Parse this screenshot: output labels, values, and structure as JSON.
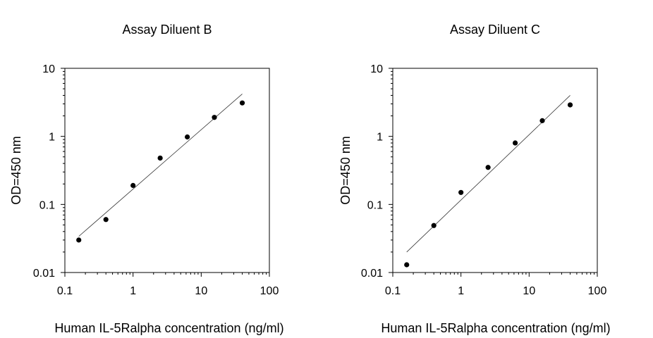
{
  "chart_data": [
    {
      "type": "scatter",
      "title": "Assay Diluent B",
      "xlabel": "Human IL-5Ralpha concentration (ng/ml)",
      "ylabel": "OD=450 nm",
      "xscale": "log",
      "yscale": "log",
      "xlim": [
        0.1,
        100
      ],
      "ylim": [
        0.01,
        10
      ],
      "xticks": [
        "0.1",
        "1",
        "10",
        "100"
      ],
      "yticks": [
        "0.01",
        "0.1",
        "1",
        "10"
      ],
      "grid": false,
      "x": [
        0.16,
        0.4,
        1,
        2.5,
        6.25,
        15.6,
        40
      ],
      "y": [
        0.03,
        0.06,
        0.19,
        0.48,
        0.98,
        1.9,
        3.1
      ],
      "fit_line": {
        "x": [
          0.16,
          40
        ],
        "y": [
          0.034,
          4.2
        ]
      }
    },
    {
      "type": "scatter",
      "title": "Assay Diluent C",
      "xlabel": "Human IL-5Ralpha concentration (ng/ml)",
      "ylabel": "OD=450 nm",
      "xscale": "log",
      "yscale": "log",
      "xlim": [
        0.1,
        100
      ],
      "ylim": [
        0.01,
        10
      ],
      "xticks": [
        "0.1",
        "1",
        "10",
        "100"
      ],
      "yticks": [
        "0.01",
        "0.1",
        "1",
        "10"
      ],
      "grid": false,
      "x": [
        0.16,
        0.4,
        1,
        2.5,
        6.25,
        15.6,
        40
      ],
      "y": [
        0.013,
        0.049,
        0.15,
        0.35,
        0.8,
        1.7,
        2.9
      ],
      "fit_line": {
        "x": [
          0.16,
          40
        ],
        "y": [
          0.02,
          4.0
        ]
      }
    }
  ]
}
